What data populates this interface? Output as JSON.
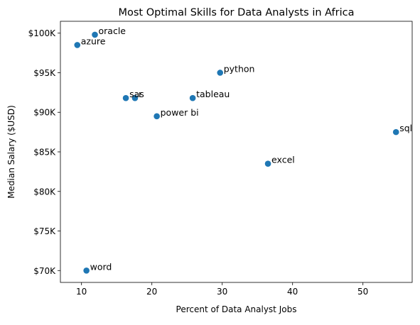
{
  "chart_data": {
    "type": "scatter",
    "title": "Most Optimal Skills for Data Analysts in Africa",
    "xlabel": "Percent of Data Analyst Jobs",
    "ylabel": "Median Salary ($USD)",
    "xlim": [
      7,
      57
    ],
    "ylim": [
      68500,
      101500
    ],
    "x_ticks": [
      10,
      20,
      30,
      40,
      50
    ],
    "x_tick_labels": [
      "10",
      "20",
      "30",
      "40",
      "50"
    ],
    "y_ticks": [
      70000,
      75000,
      80000,
      85000,
      90000,
      95000,
      100000
    ],
    "y_tick_labels": [
      "$70K",
      "$75K",
      "$80K",
      "$85K",
      "$90K",
      "$95K",
      "$100K"
    ],
    "grid": false,
    "legend": "none",
    "marker_color": "#1f77b4",
    "points": [
      {
        "label": "oracle",
        "x": 11.9,
        "y": 99800
      },
      {
        "label": "azure",
        "x": 9.4,
        "y": 98500
      },
      {
        "label": "python",
        "x": 29.7,
        "y": 95000
      },
      {
        "label": "sas",
        "x": 16.3,
        "y": 91800
      },
      {
        "label": "r",
        "x": 17.6,
        "y": 91800
      },
      {
        "label": "tableau",
        "x": 25.8,
        "y": 91800
      },
      {
        "label": "power bi",
        "x": 20.7,
        "y": 89500
      },
      {
        "label": "sql",
        "x": 54.7,
        "y": 87500
      },
      {
        "label": "excel",
        "x": 36.5,
        "y": 83500
      },
      {
        "label": "word",
        "x": 10.7,
        "y": 70000
      }
    ]
  }
}
